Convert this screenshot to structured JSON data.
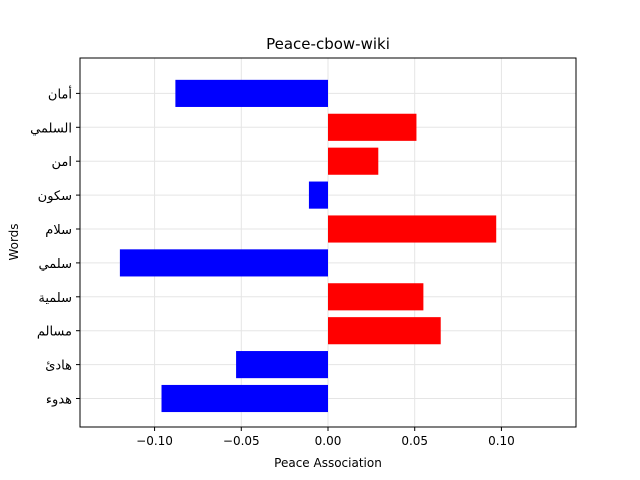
{
  "chart_data": {
    "type": "bar",
    "orientation": "horizontal",
    "title": "Peace-cbow-wiki",
    "xlabel": "Peace Association",
    "ylabel": "Words",
    "categories": [
      "هدوء",
      "هادئ",
      "مسالم",
      "سلمية",
      "سلمي",
      "سلام",
      "سكون",
      "امن",
      "السلمي",
      "أمان"
    ],
    "values": [
      -0.096,
      -0.053,
      0.065,
      0.055,
      -0.12,
      0.097,
      -0.011,
      0.029,
      0.051,
      -0.088
    ],
    "xlim": [
      -0.143,
      0.143
    ],
    "xticks": [
      -0.1,
      -0.05,
      0.0,
      0.05,
      0.1
    ],
    "xtick_labels": [
      "−0.10",
      "−0.05",
      "0.00",
      "0.05",
      "0.10"
    ],
    "grid": true,
    "colors": {
      "positive": "#ff0000",
      "negative": "#0000ff",
      "grid": "#e5e5e5",
      "axes": "#000000"
    }
  }
}
